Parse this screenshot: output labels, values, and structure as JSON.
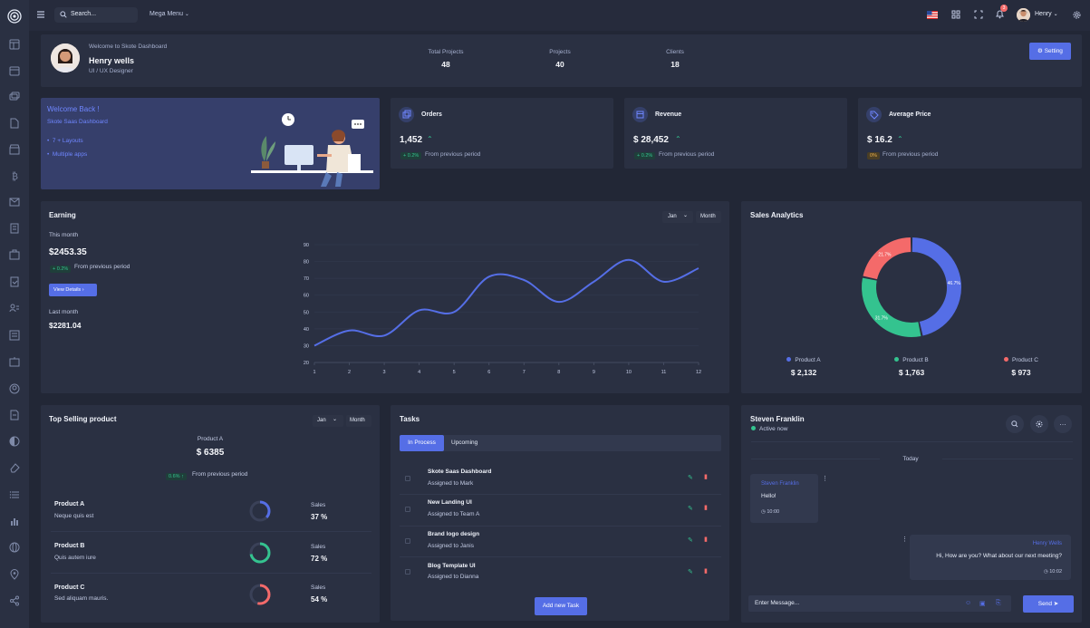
{
  "topbar": {
    "search_placeholder": "Search...",
    "mega_menu": "Mega Menu",
    "notification_count": "3",
    "user_name": "Henry"
  },
  "profile": {
    "welcome": "Welcome to Skote Dashboard",
    "name": "Henry wells",
    "role": "UI / UX Designer",
    "stats": [
      {
        "label": "Total Projects",
        "value": "48"
      },
      {
        "label": "Projects",
        "value": "40"
      },
      {
        "label": "Clients",
        "value": "18"
      }
    ],
    "setting_button": "Setting"
  },
  "welcome_card": {
    "title": "Welcome Back !",
    "subtitle": "Skote Saas Dashboard",
    "items": [
      "7 + Layouts",
      "Multiple apps"
    ]
  },
  "stat_cards": [
    {
      "title": "Orders",
      "value": "1,452",
      "badge": "+ 0.2%",
      "note": "From previous period"
    },
    {
      "title": "Revenue",
      "value": "$ 28,452",
      "badge": "+ 0.2%",
      "note": "From previous period"
    },
    {
      "title": "Average Price",
      "value": "$ 16.2",
      "badge": "0%",
      "note": "From previous period"
    }
  ],
  "earning": {
    "title": "Earning",
    "select_month": "Jan",
    "select_period": "Month",
    "this_month_label": "This month",
    "this_month_value": "$2453.35",
    "badge": "+ 0.2%",
    "note": "From previous period",
    "view_details": "View Details",
    "last_month_label": "Last month",
    "last_month_value": "$2281.04"
  },
  "sales": {
    "title": "Sales Analytics",
    "legend": [
      {
        "name": "Product A",
        "value": "$ 2,132",
        "color": "#556ee6"
      },
      {
        "name": "Product B",
        "value": "$ 1,763",
        "color": "#34c38f"
      },
      {
        "name": "Product C",
        "value": "$ 973",
        "color": "#f46a6a"
      }
    ]
  },
  "chart_data": [
    {
      "type": "line",
      "x": [
        1,
        2,
        3,
        4,
        5,
        6,
        7,
        8,
        9,
        10,
        11,
        12
      ],
      "series": [
        {
          "values": [
            30,
            39,
            36,
            51,
            50,
            71,
            69,
            56,
            68,
            81,
            68,
            76
          ],
          "color": "#556ee6"
        }
      ],
      "yticks": [
        "20",
        "30",
        "40",
        "50",
        "60",
        "70",
        "80",
        "90"
      ],
      "xticks": [
        "1",
        "2",
        "3",
        "4",
        "5",
        "6",
        "7",
        "8",
        "9",
        "10",
        "11",
        "12"
      ],
      "ylim": [
        20,
        90
      ],
      "grid": true
    },
    {
      "type": "pie",
      "categories": [
        "Product A",
        "Product B",
        "Product C"
      ],
      "values": [
        46.7,
        31.7,
        21.7
      ],
      "labels": [
        "46.7%",
        "31.7%",
        "21.7%"
      ],
      "colors": [
        "#556ee6",
        "#34c38f",
        "#f46a6a"
      ]
    }
  ],
  "top_selling": {
    "title": "Top Selling product",
    "select_month": "Jan",
    "select_period": "Month",
    "product": "Product A",
    "value": "$ 6385",
    "badge": "0.6% ↑",
    "note": "From previous period",
    "rows": [
      {
        "name": "Product A",
        "desc": "Neque quis est",
        "sales_label": "Sales",
        "sales": "37 %",
        "pct": 37,
        "color": "#556ee6"
      },
      {
        "name": "Product B",
        "desc": "Quis autem iure",
        "sales_label": "Sales",
        "sales": "72 %",
        "pct": 72,
        "color": "#34c38f"
      },
      {
        "name": "Product C",
        "desc": "Sed aliquam mauris.",
        "sales_label": "Sales",
        "sales": "54 %",
        "pct": 54,
        "color": "#f46a6a"
      }
    ]
  },
  "tasks": {
    "title": "Tasks",
    "tab_in_process": "In Process",
    "tab_upcoming": "Upcoming",
    "items": [
      {
        "title": "Skote Saas Dashboard",
        "assigned": "Assigned to Mark"
      },
      {
        "title": "New Landing UI",
        "assigned": "Assigned to Team A"
      },
      {
        "title": "Brand logo design",
        "assigned": "Assigned to Janis"
      },
      {
        "title": "Blog Template UI",
        "assigned": "Assigned to Dianna"
      }
    ],
    "add_button": "Add new Task"
  },
  "chat": {
    "name": "Steven Franklin",
    "status": "Active now",
    "day_label": "Today",
    "messages": [
      {
        "author": "Steven Franklin",
        "text": "Hello!",
        "time": "10:00"
      },
      {
        "author": "Henry Wells",
        "text": "Hi, How are you? What about our next meeting?",
        "time": "10:02"
      }
    ],
    "input_placeholder": "Enter Message...",
    "send_button": "Send"
  }
}
